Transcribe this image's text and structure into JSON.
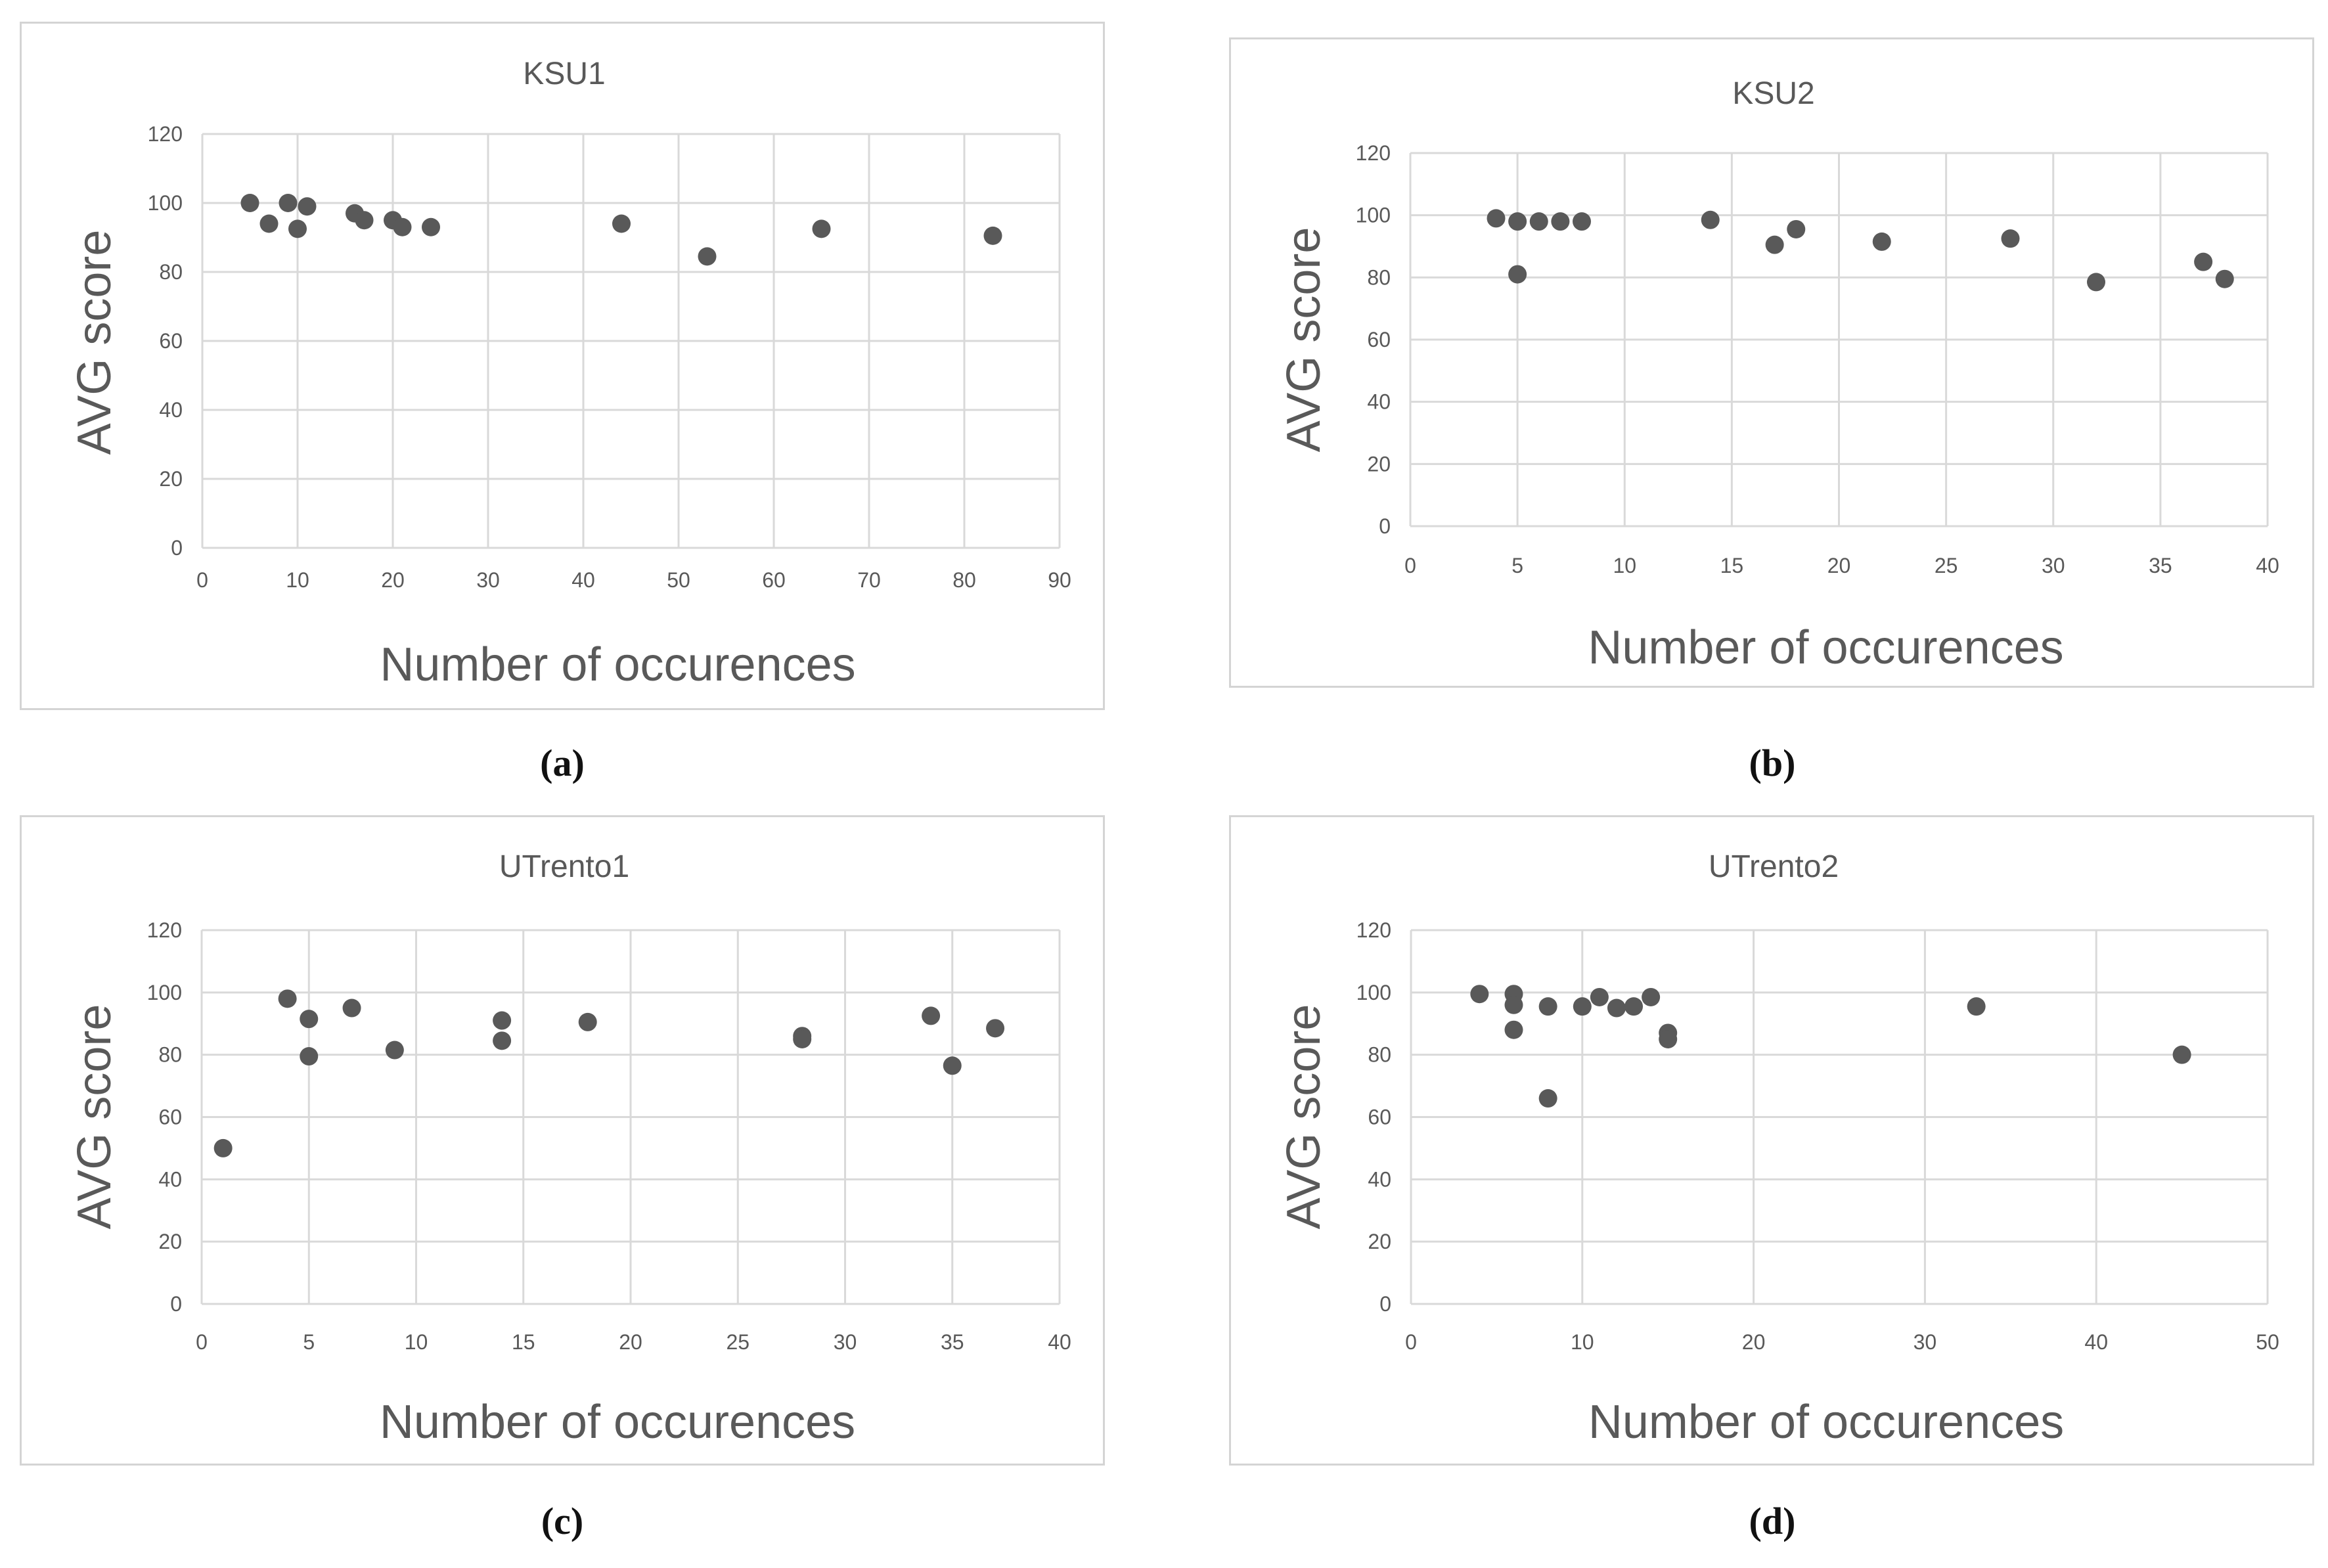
{
  "chart_data": [
    {
      "type": "scatter",
      "title": "KSU1",
      "xlabel": "Number of occurences",
      "ylabel": "AVG score",
      "xlim": [
        0,
        90
      ],
      "xstep": 10,
      "ylim": [
        0,
        120
      ],
      "ystep": 20,
      "x": [
        5,
        7,
        9,
        10,
        11,
        16,
        17,
        20,
        21,
        24,
        44,
        53,
        65,
        83
      ],
      "y": [
        100,
        94,
        100,
        92.5,
        99,
        97,
        95,
        95,
        93,
        93,
        94,
        84.5,
        92.5,
        90.5
      ],
      "caption": "(a)"
    },
    {
      "type": "scatter",
      "title": "KSU2",
      "xlabel": "Number of occurences",
      "ylabel": "AVG score",
      "xlim": [
        0,
        40
      ],
      "xstep": 5,
      "ylim": [
        0,
        120
      ],
      "ystep": 20,
      "x": [
        4,
        5,
        5,
        6,
        7,
        8,
        14,
        17,
        18,
        22,
        28,
        32,
        37,
        38
      ],
      "y": [
        99,
        98,
        81,
        98,
        98,
        98,
        98.5,
        90.5,
        95.5,
        91.5,
        92.5,
        78.5,
        85,
        79.5
      ],
      "caption": "(b)"
    },
    {
      "type": "scatter",
      "title": "UTrento1",
      "xlabel": "Number of occurences",
      "ylabel": "AVG score",
      "xlim": [
        0,
        40
      ],
      "xstep": 5,
      "ylim": [
        0,
        120
      ],
      "ystep": 20,
      "x": [
        1,
        4,
        5,
        5,
        7,
        9,
        14,
        14,
        18,
        28,
        28,
        34,
        35,
        37
      ],
      "y": [
        50,
        98,
        91.5,
        79.5,
        95,
        81.5,
        91,
        84.5,
        90.5,
        86,
        85,
        92.5,
        76.5,
        88.5
      ],
      "caption": "(c)"
    },
    {
      "type": "scatter",
      "title": "UTrento2",
      "xlabel": "Number of occurences",
      "ylabel": "AVG score",
      "xlim": [
        0,
        50
      ],
      "xstep": 10,
      "ylim": [
        0,
        120
      ],
      "ystep": 20,
      "x": [
        4,
        6,
        6,
        6,
        8,
        8,
        10,
        11,
        12,
        13,
        14,
        15,
        15,
        33,
        45
      ],
      "y": [
        99.5,
        99.5,
        96,
        88,
        95.5,
        66,
        95.5,
        98.5,
        95,
        95.5,
        98.5,
        87,
        85,
        95.5,
        80
      ],
      "caption": "(d)"
    }
  ],
  "colors": {
    "marker": "#595959",
    "grid": "#d9d9d9",
    "text": "#595959"
  }
}
